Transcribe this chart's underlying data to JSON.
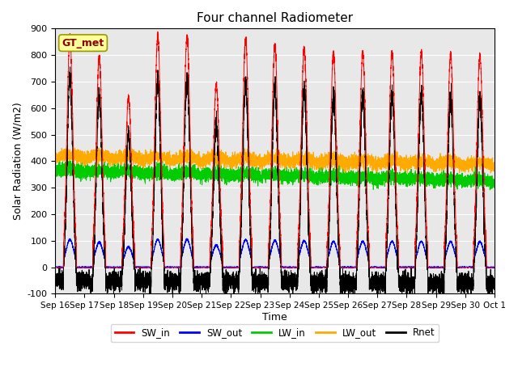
{
  "title": "Four channel Radiometer",
  "xlabel": "Time",
  "ylabel": "Solar Radiation (W/m2)",
  "ylim": [
    -100,
    900
  ],
  "yticks": [
    -100,
    0,
    100,
    200,
    300,
    400,
    500,
    600,
    700,
    800,
    900
  ],
  "xtick_labels": [
    "Sep 16",
    "Sep 17",
    "Sep 18",
    "Sep 19",
    "Sep 20",
    "Sep 21",
    "Sep 22",
    "Sep 23",
    "Sep 24",
    "Sep 25",
    "Sep 26",
    "Sep 27",
    "Sep 28",
    "Sep 29",
    "Sep 30",
    "Oct 1"
  ],
  "n_days": 15,
  "legend_entries": [
    {
      "label": "SW_in",
      "color": "#ff0000"
    },
    {
      "label": "SW_out",
      "color": "#0000ff"
    },
    {
      "label": "LW_in",
      "color": "#00cc00"
    },
    {
      "label": "LW_out",
      "color": "#ffaa00"
    },
    {
      "label": "Rnet",
      "color": "#000000"
    }
  ],
  "bg_color": "#e8e8e8",
  "annotation_text": "GT_met",
  "annotation_color": "#8b0000",
  "annotation_bg": "#ffff99",
  "SW_in_peaks": [
    870,
    790,
    640,
    870,
    870,
    690,
    860,
    840,
    830,
    810,
    810,
    810,
    810,
    805,
    800
  ],
  "day_start": 0.55,
  "day_end": 0.8,
  "pts_per_day": 500
}
